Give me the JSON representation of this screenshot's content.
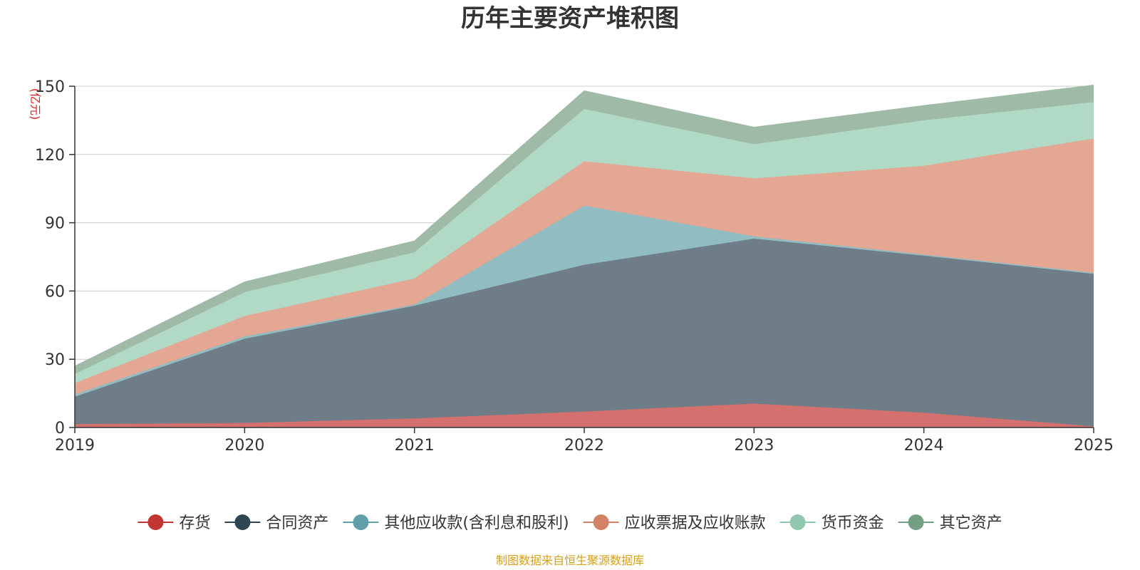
{
  "chart_data": {
    "type": "area",
    "stacked": true,
    "title": "历年主要资产堆积图",
    "unit_label": "(亿元)",
    "categories": [
      "2019",
      "2020",
      "2021",
      "2022",
      "2023",
      "2024",
      "2025"
    ],
    "y_ticks": [
      "0",
      "30",
      "60",
      "90",
      "120",
      "150"
    ],
    "ylim": [
      0,
      150
    ],
    "grid": true,
    "legend_position": "bottom",
    "series": [
      {
        "name": "存货",
        "color": "#c23531",
        "fill": "#d4706e",
        "values": [
          1.5,
          2,
          4,
          7,
          10.5,
          6.5,
          0.5
        ]
      },
      {
        "name": "合同资产",
        "color": "#2f4554",
        "fill": "#6e7d88",
        "values": [
          12,
          37,
          49.5,
          64.5,
          72.5,
          69,
          67
        ]
      },
      {
        "name": "其他应收款(含利息和股利)",
        "color": "#61a0a8",
        "fill": "#90bcc2",
        "values": [
          1,
          1,
          0.5,
          26,
          1,
          0.5,
          0.5
        ]
      },
      {
        "name": "应收票据及应收账款",
        "color": "#d48265",
        "fill": "#e3a793",
        "values": [
          5,
          9,
          11.5,
          19.5,
          25.5,
          39,
          59
        ]
      },
      {
        "name": "货币资金",
        "color": "#91c7ae",
        "fill": "#b0d9c6",
        "values": [
          4,
          10.5,
          11.5,
          23,
          15,
          20,
          16
        ]
      },
      {
        "name": "其它资产",
        "color": "#749f83",
        "fill": "#9fbaa6",
        "values": [
          3.5,
          4.5,
          5,
          8,
          7.5,
          6.5,
          7.5
        ]
      }
    ]
  },
  "source_note": "制图数据来自恒生聚源数据库"
}
